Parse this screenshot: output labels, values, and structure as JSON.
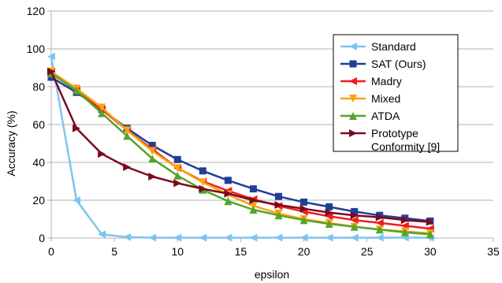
{
  "chart_data": {
    "type": "line",
    "title": "",
    "xlabel": "epsilon",
    "ylabel": "Accuracy (%)",
    "xlim": [
      0,
      35
    ],
    "ylim": [
      0,
      120
    ],
    "xticks": [
      0,
      5,
      10,
      15,
      20,
      25,
      30,
      35
    ],
    "yticks": [
      0,
      20,
      40,
      60,
      80,
      100,
      120
    ],
    "grid": "horizontal",
    "legend_position": "right",
    "x": [
      0,
      2,
      4,
      6,
      8,
      10,
      12,
      14,
      16,
      18,
      20,
      22,
      24,
      26,
      28,
      30
    ],
    "series": [
      {
        "name": "Standard",
        "color": "#7fc4f1",
        "marker": "triangle-left",
        "values": [
          96,
          20,
          2,
          0.5,
          0.2,
          0.2,
          0.2,
          0.2,
          0.2,
          0.2,
          0.2,
          0.2,
          0.2,
          0.2,
          0.2,
          0.2
        ]
      },
      {
        "name": "SAT (Ours)",
        "color": "#1f3f97",
        "marker": "square",
        "values": [
          85,
          77,
          68,
          58,
          49,
          41.5,
          35.5,
          30.5,
          26,
          22,
          19,
          16.5,
          14,
          12,
          10.5,
          9
        ]
      },
      {
        "name": "Madry",
        "color": "#ee1c25",
        "marker": "triangle-left",
        "values": [
          88,
          78,
          68,
          57,
          47,
          37,
          30,
          25,
          20.5,
          17,
          14,
          11.5,
          9.5,
          8,
          6.5,
          5
        ]
      },
      {
        "name": "Mixed",
        "color": "#f9a50f",
        "marker": "triangle-down",
        "values": [
          88,
          79,
          69,
          57,
          46,
          37,
          29.5,
          23,
          17,
          13,
          10,
          8,
          6,
          4.5,
          3.5,
          2.5
        ]
      },
      {
        "name": "ATDA",
        "color": "#56a428",
        "marker": "triangle-up",
        "values": [
          87,
          78,
          66,
          54,
          42,
          33,
          25.5,
          19.5,
          15,
          12,
          9.5,
          7.5,
          6,
          4.5,
          3,
          2
        ]
      },
      {
        "name": "Prototype Conformity [9]",
        "legend_lines": [
          "Prototype",
          "Conformity [9]"
        ],
        "color": "#7b0a1e",
        "marker": "triangle-right",
        "values": [
          88,
          58,
          44.5,
          37.5,
          32.5,
          29,
          26,
          23.5,
          20,
          17.5,
          15.5,
          13.5,
          12,
          11,
          9.5,
          8.5
        ]
      }
    ]
  }
}
